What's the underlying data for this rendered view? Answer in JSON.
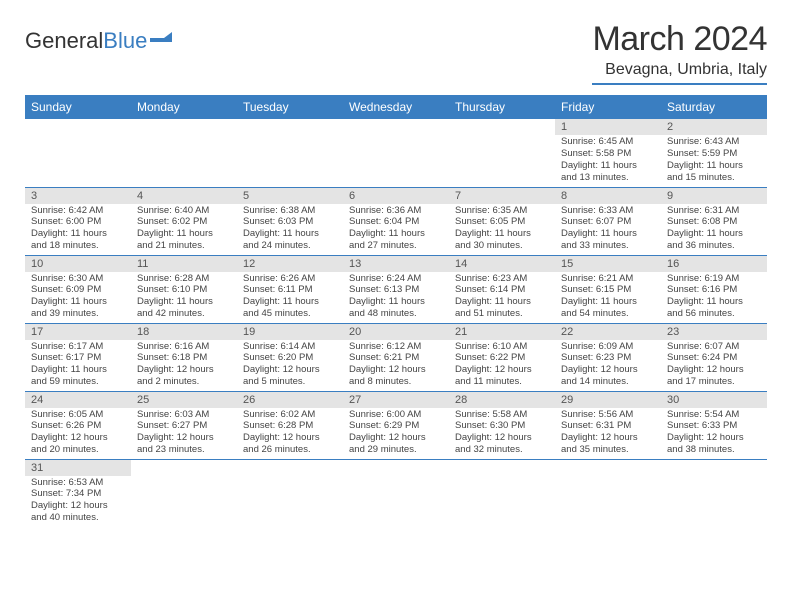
{
  "logo": {
    "text1": "General",
    "text2": "Blue"
  },
  "title": "March 2024",
  "location": "Bevagna, Umbria, Italy",
  "colors": {
    "accent": "#3a7ec1",
    "header_bg": "#3a7ec1",
    "daynum_bg": "#e4e4e4"
  },
  "weekdays": [
    "Sunday",
    "Monday",
    "Tuesday",
    "Wednesday",
    "Thursday",
    "Friday",
    "Saturday"
  ],
  "weeks": [
    [
      null,
      null,
      null,
      null,
      null,
      {
        "n": "1",
        "sr": "Sunrise: 6:45 AM",
        "ss": "Sunset: 5:58 PM",
        "d1": "Daylight: 11 hours",
        "d2": "and 13 minutes."
      },
      {
        "n": "2",
        "sr": "Sunrise: 6:43 AM",
        "ss": "Sunset: 5:59 PM",
        "d1": "Daylight: 11 hours",
        "d2": "and 15 minutes."
      }
    ],
    [
      {
        "n": "3",
        "sr": "Sunrise: 6:42 AM",
        "ss": "Sunset: 6:00 PM",
        "d1": "Daylight: 11 hours",
        "d2": "and 18 minutes."
      },
      {
        "n": "4",
        "sr": "Sunrise: 6:40 AM",
        "ss": "Sunset: 6:02 PM",
        "d1": "Daylight: 11 hours",
        "d2": "and 21 minutes."
      },
      {
        "n": "5",
        "sr": "Sunrise: 6:38 AM",
        "ss": "Sunset: 6:03 PM",
        "d1": "Daylight: 11 hours",
        "d2": "and 24 minutes."
      },
      {
        "n": "6",
        "sr": "Sunrise: 6:36 AM",
        "ss": "Sunset: 6:04 PM",
        "d1": "Daylight: 11 hours",
        "d2": "and 27 minutes."
      },
      {
        "n": "7",
        "sr": "Sunrise: 6:35 AM",
        "ss": "Sunset: 6:05 PM",
        "d1": "Daylight: 11 hours",
        "d2": "and 30 minutes."
      },
      {
        "n": "8",
        "sr": "Sunrise: 6:33 AM",
        "ss": "Sunset: 6:07 PM",
        "d1": "Daylight: 11 hours",
        "d2": "and 33 minutes."
      },
      {
        "n": "9",
        "sr": "Sunrise: 6:31 AM",
        "ss": "Sunset: 6:08 PM",
        "d1": "Daylight: 11 hours",
        "d2": "and 36 minutes."
      }
    ],
    [
      {
        "n": "10",
        "sr": "Sunrise: 6:30 AM",
        "ss": "Sunset: 6:09 PM",
        "d1": "Daylight: 11 hours",
        "d2": "and 39 minutes."
      },
      {
        "n": "11",
        "sr": "Sunrise: 6:28 AM",
        "ss": "Sunset: 6:10 PM",
        "d1": "Daylight: 11 hours",
        "d2": "and 42 minutes."
      },
      {
        "n": "12",
        "sr": "Sunrise: 6:26 AM",
        "ss": "Sunset: 6:11 PM",
        "d1": "Daylight: 11 hours",
        "d2": "and 45 minutes."
      },
      {
        "n": "13",
        "sr": "Sunrise: 6:24 AM",
        "ss": "Sunset: 6:13 PM",
        "d1": "Daylight: 11 hours",
        "d2": "and 48 minutes."
      },
      {
        "n": "14",
        "sr": "Sunrise: 6:23 AM",
        "ss": "Sunset: 6:14 PM",
        "d1": "Daylight: 11 hours",
        "d2": "and 51 minutes."
      },
      {
        "n": "15",
        "sr": "Sunrise: 6:21 AM",
        "ss": "Sunset: 6:15 PM",
        "d1": "Daylight: 11 hours",
        "d2": "and 54 minutes."
      },
      {
        "n": "16",
        "sr": "Sunrise: 6:19 AM",
        "ss": "Sunset: 6:16 PM",
        "d1": "Daylight: 11 hours",
        "d2": "and 56 minutes."
      }
    ],
    [
      {
        "n": "17",
        "sr": "Sunrise: 6:17 AM",
        "ss": "Sunset: 6:17 PM",
        "d1": "Daylight: 11 hours",
        "d2": "and 59 minutes."
      },
      {
        "n": "18",
        "sr": "Sunrise: 6:16 AM",
        "ss": "Sunset: 6:18 PM",
        "d1": "Daylight: 12 hours",
        "d2": "and 2 minutes."
      },
      {
        "n": "19",
        "sr": "Sunrise: 6:14 AM",
        "ss": "Sunset: 6:20 PM",
        "d1": "Daylight: 12 hours",
        "d2": "and 5 minutes."
      },
      {
        "n": "20",
        "sr": "Sunrise: 6:12 AM",
        "ss": "Sunset: 6:21 PM",
        "d1": "Daylight: 12 hours",
        "d2": "and 8 minutes."
      },
      {
        "n": "21",
        "sr": "Sunrise: 6:10 AM",
        "ss": "Sunset: 6:22 PM",
        "d1": "Daylight: 12 hours",
        "d2": "and 11 minutes."
      },
      {
        "n": "22",
        "sr": "Sunrise: 6:09 AM",
        "ss": "Sunset: 6:23 PM",
        "d1": "Daylight: 12 hours",
        "d2": "and 14 minutes."
      },
      {
        "n": "23",
        "sr": "Sunrise: 6:07 AM",
        "ss": "Sunset: 6:24 PM",
        "d1": "Daylight: 12 hours",
        "d2": "and 17 minutes."
      }
    ],
    [
      {
        "n": "24",
        "sr": "Sunrise: 6:05 AM",
        "ss": "Sunset: 6:26 PM",
        "d1": "Daylight: 12 hours",
        "d2": "and 20 minutes."
      },
      {
        "n": "25",
        "sr": "Sunrise: 6:03 AM",
        "ss": "Sunset: 6:27 PM",
        "d1": "Daylight: 12 hours",
        "d2": "and 23 minutes."
      },
      {
        "n": "26",
        "sr": "Sunrise: 6:02 AM",
        "ss": "Sunset: 6:28 PM",
        "d1": "Daylight: 12 hours",
        "d2": "and 26 minutes."
      },
      {
        "n": "27",
        "sr": "Sunrise: 6:00 AM",
        "ss": "Sunset: 6:29 PM",
        "d1": "Daylight: 12 hours",
        "d2": "and 29 minutes."
      },
      {
        "n": "28",
        "sr": "Sunrise: 5:58 AM",
        "ss": "Sunset: 6:30 PM",
        "d1": "Daylight: 12 hours",
        "d2": "and 32 minutes."
      },
      {
        "n": "29",
        "sr": "Sunrise: 5:56 AM",
        "ss": "Sunset: 6:31 PM",
        "d1": "Daylight: 12 hours",
        "d2": "and 35 minutes."
      },
      {
        "n": "30",
        "sr": "Sunrise: 5:54 AM",
        "ss": "Sunset: 6:33 PM",
        "d1": "Daylight: 12 hours",
        "d2": "and 38 minutes."
      }
    ],
    [
      {
        "n": "31",
        "sr": "Sunrise: 6:53 AM",
        "ss": "Sunset: 7:34 PM",
        "d1": "Daylight: 12 hours",
        "d2": "and 40 minutes."
      },
      null,
      null,
      null,
      null,
      null,
      null
    ]
  ]
}
